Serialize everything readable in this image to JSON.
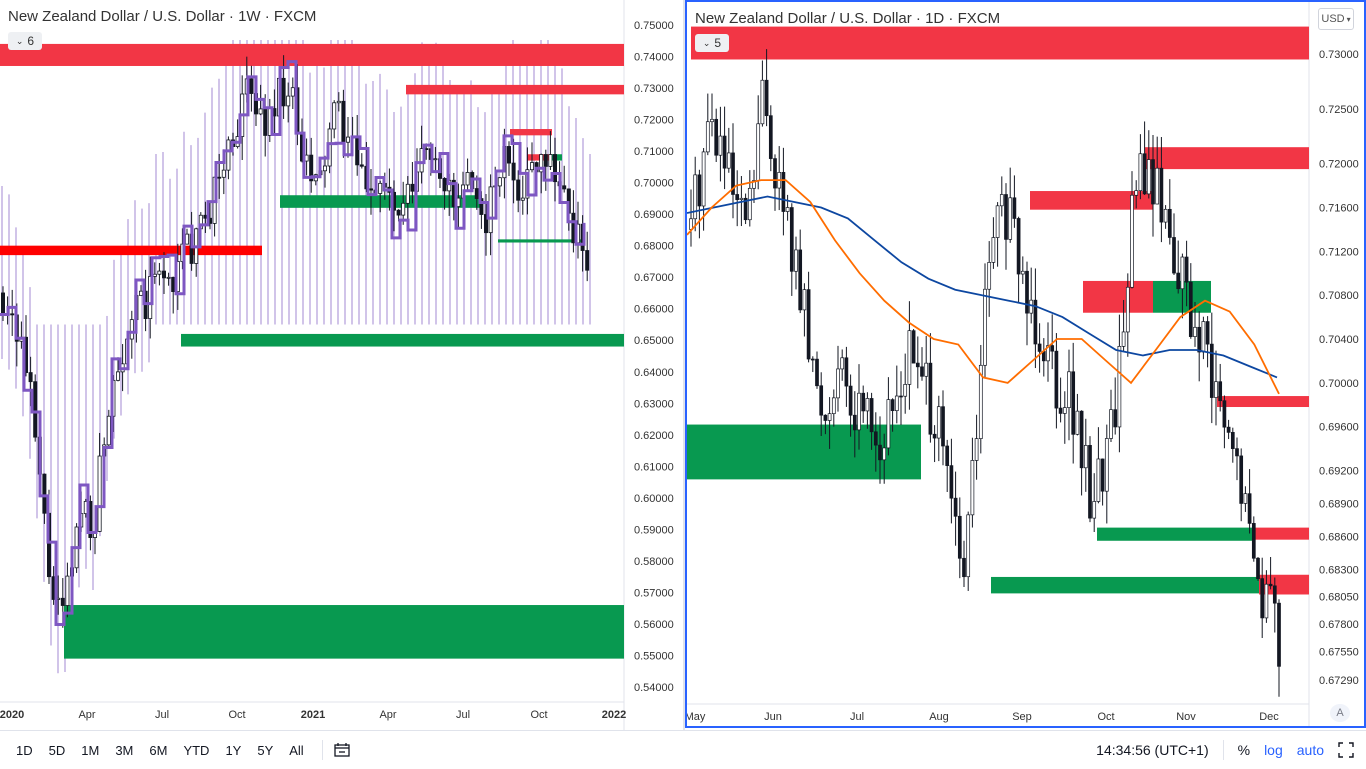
{
  "left_chart": {
    "title": "New Zealand Dollar / U.S. Dollar · 1W · FXCM",
    "indicator_count": "6",
    "price_labels": [
      "0.75000",
      "0.74000",
      "0.73000",
      "0.72000",
      "0.71000",
      "0.70000",
      "0.69000",
      "0.68000",
      "0.67000",
      "0.66000",
      "0.65000",
      "0.64000",
      "0.63000",
      "0.62000",
      "0.61000",
      "0.60000",
      "0.59000",
      "0.58000",
      "0.57000",
      "0.56000",
      "0.55000",
      "0.54000"
    ],
    "time_labels": [
      "2020",
      "Apr",
      "Jul",
      "Oct",
      "2021",
      "Apr",
      "Jul",
      "Oct",
      "2022"
    ]
  },
  "right_chart": {
    "title": "New Zealand Dollar / U.S. Dollar · 1D · FXCM",
    "indicator_count": "5",
    "currency_button": "USD",
    "price_labels": [
      "0.73000",
      "0.72500",
      "0.72000",
      "0.71600",
      "0.71200",
      "0.70800",
      "0.70400",
      "0.70000",
      "0.69600",
      "0.69200",
      "0.68900",
      "0.68600",
      "0.68300",
      "0.68050",
      "0.67800",
      "0.67550",
      "0.67290"
    ],
    "time_labels": [
      "May",
      "Jun",
      "Jul",
      "Aug",
      "Sep",
      "Oct",
      "Nov",
      "Dec"
    ],
    "auto_scale_button": "A"
  },
  "bottom_bar": {
    "ranges": [
      "1D",
      "5D",
      "1M",
      "3M",
      "6M",
      "YTD",
      "1Y",
      "5Y",
      "All"
    ],
    "clock": "14:34:56 (UTC+1)",
    "percent": "%",
    "log": "log",
    "auto": "auto"
  },
  "colors": {
    "supply_zone": "#f23645",
    "demand_zone": "#089950",
    "candle": "#131722",
    "profile_line": "#7e57c2",
    "ma_fast": "#ff6d00",
    "ma_slow": "#0d47a1",
    "active_border": "#2962ff"
  },
  "chart_data": [
    {
      "type": "candlestick",
      "title": "New Zealand Dollar / U.S. Dollar · 1W · FXCM",
      "ylim": [
        0.535,
        0.755
      ],
      "x": [
        "2020",
        "Apr",
        "Jul",
        "Oct",
        "2021",
        "Apr",
        "Jul",
        "Oct",
        "2022"
      ],
      "close_path": [
        0.665,
        0.66,
        0.65,
        0.63,
        0.6,
        0.57,
        0.56,
        0.58,
        0.6,
        0.59,
        0.62,
        0.64,
        0.65,
        0.66,
        0.66,
        0.67,
        0.67,
        0.67,
        0.68,
        0.68,
        0.69,
        0.7,
        0.71,
        0.72,
        0.73,
        0.72,
        0.72,
        0.73,
        0.73,
        0.71,
        0.7,
        0.7,
        0.72,
        0.72,
        0.71,
        0.7,
        0.7,
        0.7,
        0.69,
        0.69,
        0.7,
        0.71,
        0.71,
        0.7,
        0.69,
        0.7,
        0.69,
        0.69,
        0.7,
        0.71,
        0.7,
        0.7,
        0.71,
        0.71,
        0.7,
        0.69,
        0.68,
        0.675
      ],
      "supply_zones": [
        [
          0.737,
          0.744
        ],
        [
          0.728,
          0.731
        ],
        [
          0.677,
          0.68
        ],
        [
          0.715,
          0.717
        ],
        [
          0.707,
          0.709
        ]
      ],
      "demand_zones": [
        [
          0.648,
          0.652
        ],
        [
          0.692,
          0.696
        ],
        [
          0.549,
          0.566
        ],
        [
          0.681,
          0.682
        ],
        [
          0.707,
          0.709
        ]
      ]
    },
    {
      "type": "candlestick",
      "title": "New Zealand Dollar / U.S. Dollar · 1D · FXCM",
      "ylim": [
        0.671,
        0.7325
      ],
      "x": [
        "May",
        "Jun",
        "Jul",
        "Aug",
        "Sep",
        "Oct",
        "Nov",
        "Dec"
      ],
      "close_path": [
        0.714,
        0.718,
        0.724,
        0.722,
        0.718,
        0.714,
        0.716,
        0.726,
        0.722,
        0.716,
        0.712,
        0.706,
        0.7,
        0.697,
        0.702,
        0.698,
        0.697,
        0.7,
        0.694,
        0.696,
        0.7,
        0.703,
        0.7,
        0.698,
        0.694,
        0.688,
        0.682,
        0.692,
        0.706,
        0.714,
        0.716,
        0.712,
        0.708,
        0.706,
        0.704,
        0.7,
        0.7,
        0.694,
        0.69,
        0.692,
        0.696,
        0.704,
        0.716,
        0.72,
        0.718,
        0.716,
        0.712,
        0.708,
        0.704,
        0.702,
        0.698,
        0.694,
        0.692,
        0.686,
        0.682,
        0.68,
        0.676
      ],
      "ma_slow": [
        0.7155,
        0.716,
        0.7165,
        0.717,
        0.7165,
        0.716,
        0.715,
        0.713,
        0.711,
        0.7095,
        0.7085,
        0.708,
        0.7075,
        0.707,
        0.706,
        0.7045,
        0.703,
        0.7025,
        0.703,
        0.703,
        0.7025,
        0.7015,
        0.7005
      ],
      "ma_fast": [
        0.7135,
        0.716,
        0.718,
        0.7185,
        0.7185,
        0.7165,
        0.713,
        0.71,
        0.7075,
        0.7055,
        0.704,
        0.7035,
        0.7005,
        0.7,
        0.702,
        0.704,
        0.704,
        0.702,
        0.7,
        0.703,
        0.706,
        0.7075,
        0.7065,
        0.7035,
        0.699
      ],
      "supply_zones": [
        [
          0.7295,
          0.7325
        ],
        [
          0.7195,
          0.7215
        ],
        [
          0.7158,
          0.7175
        ],
        [
          0.7064,
          0.7093
        ],
        [
          0.6978,
          0.6988
        ],
        [
          0.6857,
          0.6868
        ],
        [
          0.6807,
          0.6825
        ]
      ],
      "demand_zones": [
        [
          0.6912,
          0.6962
        ],
        [
          0.6856,
          0.6868
        ],
        [
          0.6808,
          0.6823
        ],
        [
          0.7064,
          0.7093
        ]
      ]
    }
  ]
}
